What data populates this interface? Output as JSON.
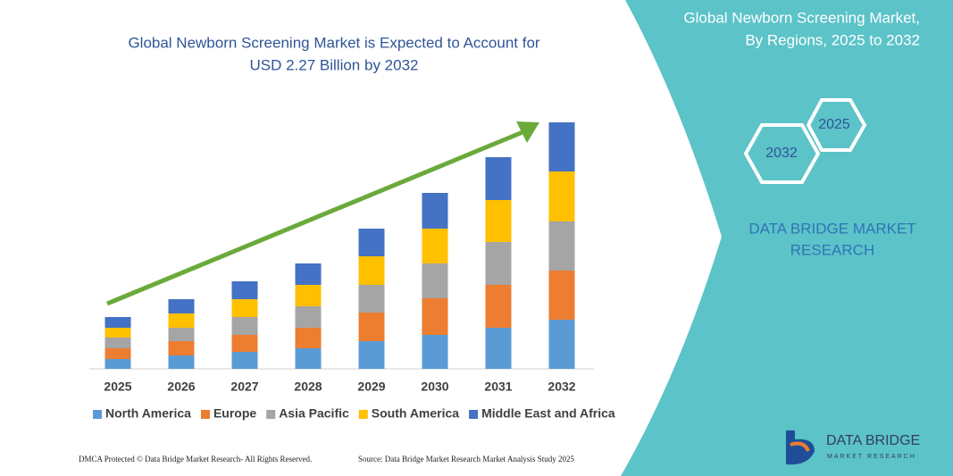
{
  "chart_data": {
    "type": "bar",
    "stacked": true,
    "title": [
      "Global Newborn Screening Market is Expected to Account for",
      "USD 2.27 Billion by 2032"
    ],
    "categories": [
      "2025",
      "2026",
      "2027",
      "2028",
      "2029",
      "2030",
      "2031",
      "2032"
    ],
    "series": [
      {
        "name": "North America",
        "color": "#5b9bd5",
        "values": [
          11,
          15,
          19,
          23,
          31,
          38,
          46,
          55
        ]
      },
      {
        "name": "Europe",
        "color": "#ed7d31",
        "values": [
          12,
          16,
          19,
          23,
          32,
          41,
          48,
          55
        ]
      },
      {
        "name": "Asia Pacific",
        "color": "#a5a5a5",
        "values": [
          12,
          15,
          20,
          24,
          31,
          39,
          48,
          55
        ]
      },
      {
        "name": "South America",
        "color": "#ffc000",
        "values": [
          11,
          16,
          20,
          24,
          32,
          39,
          47,
          56
        ]
      },
      {
        "name": "Middle East and Africa",
        "color": "#4472c4",
        "values": [
          12,
          16,
          20,
          24,
          31,
          40,
          48,
          55
        ]
      }
    ],
    "legend": "bottom"
  },
  "panel": {
    "title": [
      "Global Newborn Screening Market,",
      "By Regions, 2025 to 2032"
    ],
    "hexagons": [
      "2025",
      "2032"
    ],
    "brand": [
      "DATA BRIDGE MARKET",
      "RESEARCH"
    ]
  },
  "logo": {
    "name": "DATA BRIDGE",
    "tagline": "MARKET RESEARCH"
  },
  "footer": {
    "left": "DMCA Protected © Data Bridge Market Research- All Rights Reserved.",
    "right": "Source: Data Bridge Market Research Market Analysis Study 2025"
  }
}
